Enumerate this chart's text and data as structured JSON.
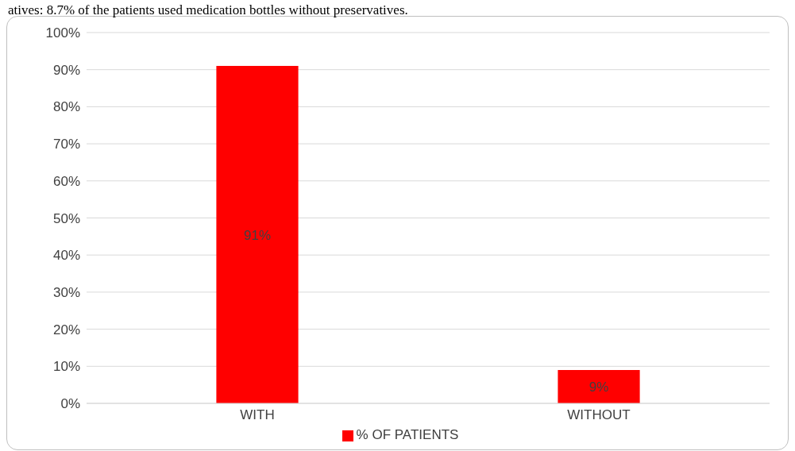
{
  "chart_data": {
    "type": "bar",
    "annotations": [
      "atives: 8.7% of the patients used medication bottles without preservatives."
    ],
    "categories": [
      "WITH",
      "WITHOUT"
    ],
    "series": [
      {
        "name": "% OF PATIENTS",
        "color": "#ff0000",
        "values": [
          91,
          9
        ],
        "value_labels": [
          "91%",
          "9%"
        ]
      }
    ],
    "ylim": [
      0,
      100
    ],
    "yticks": [
      {
        "value": 0,
        "label": "0%"
      },
      {
        "value": 10,
        "label": "10%"
      },
      {
        "value": 20,
        "label": "20%"
      },
      {
        "value": 30,
        "label": "30%"
      },
      {
        "value": 40,
        "label": "40%"
      },
      {
        "value": 50,
        "label": "50%"
      },
      {
        "value": 60,
        "label": "60%"
      },
      {
        "value": 70,
        "label": "70%"
      },
      {
        "value": 80,
        "label": "80%"
      },
      {
        "value": 90,
        "label": "90%"
      },
      {
        "value": 100,
        "label": "100%"
      }
    ],
    "grid": "y",
    "legend": "bottom"
  }
}
